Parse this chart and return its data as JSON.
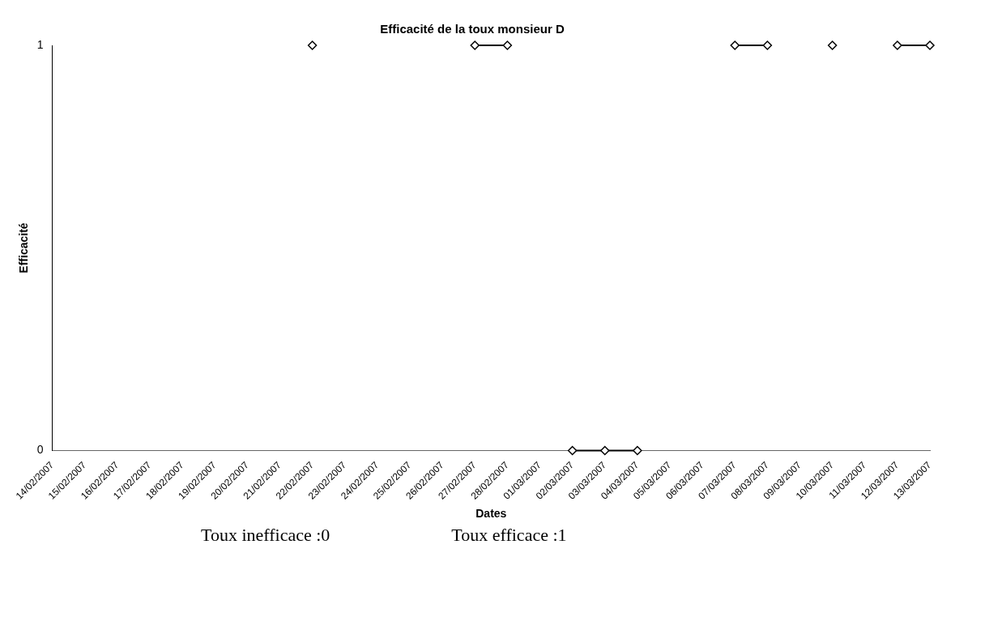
{
  "chart_data": {
    "type": "line",
    "title": "Efficacité de la toux monsieur D",
    "xlabel": "Dates",
    "ylabel": "Efficacité",
    "categories": [
      "14/02/2007",
      "15/02/2007",
      "16/02/2007",
      "17/02/2007",
      "18/02/2007",
      "19/02/2007",
      "20/02/2007",
      "21/02/2007",
      "22/02/2007",
      "23/02/2007",
      "24/02/2007",
      "25/02/2007",
      "26/02/2007",
      "27/02/2007",
      "28/02/2007",
      "01/03/2007",
      "02/03/2007",
      "03/03/2007",
      "04/03/2007",
      "05/03/2007",
      "06/03/2007",
      "07/03/2007",
      "08/03/2007",
      "09/03/2007",
      "10/03/2007",
      "11/03/2007",
      "12/03/2007",
      "13/03/2007"
    ],
    "series": [
      {
        "color": "#000000",
        "values": [
          null,
          null,
          null,
          null,
          null,
          null,
          null,
          null,
          1,
          null,
          null,
          null,
          null,
          1,
          1,
          null,
          0,
          0,
          0,
          null,
          null,
          1,
          1,
          null,
          1,
          null,
          1,
          1
        ]
      }
    ],
    "ylim": [
      0,
      1
    ],
    "yticks": [
      0,
      1
    ],
    "grid": false,
    "legend": false,
    "marker": "diamond",
    "line_style": "solid",
    "annotations": [
      "Toux inefficace :0",
      "Toux efficace :1"
    ]
  }
}
